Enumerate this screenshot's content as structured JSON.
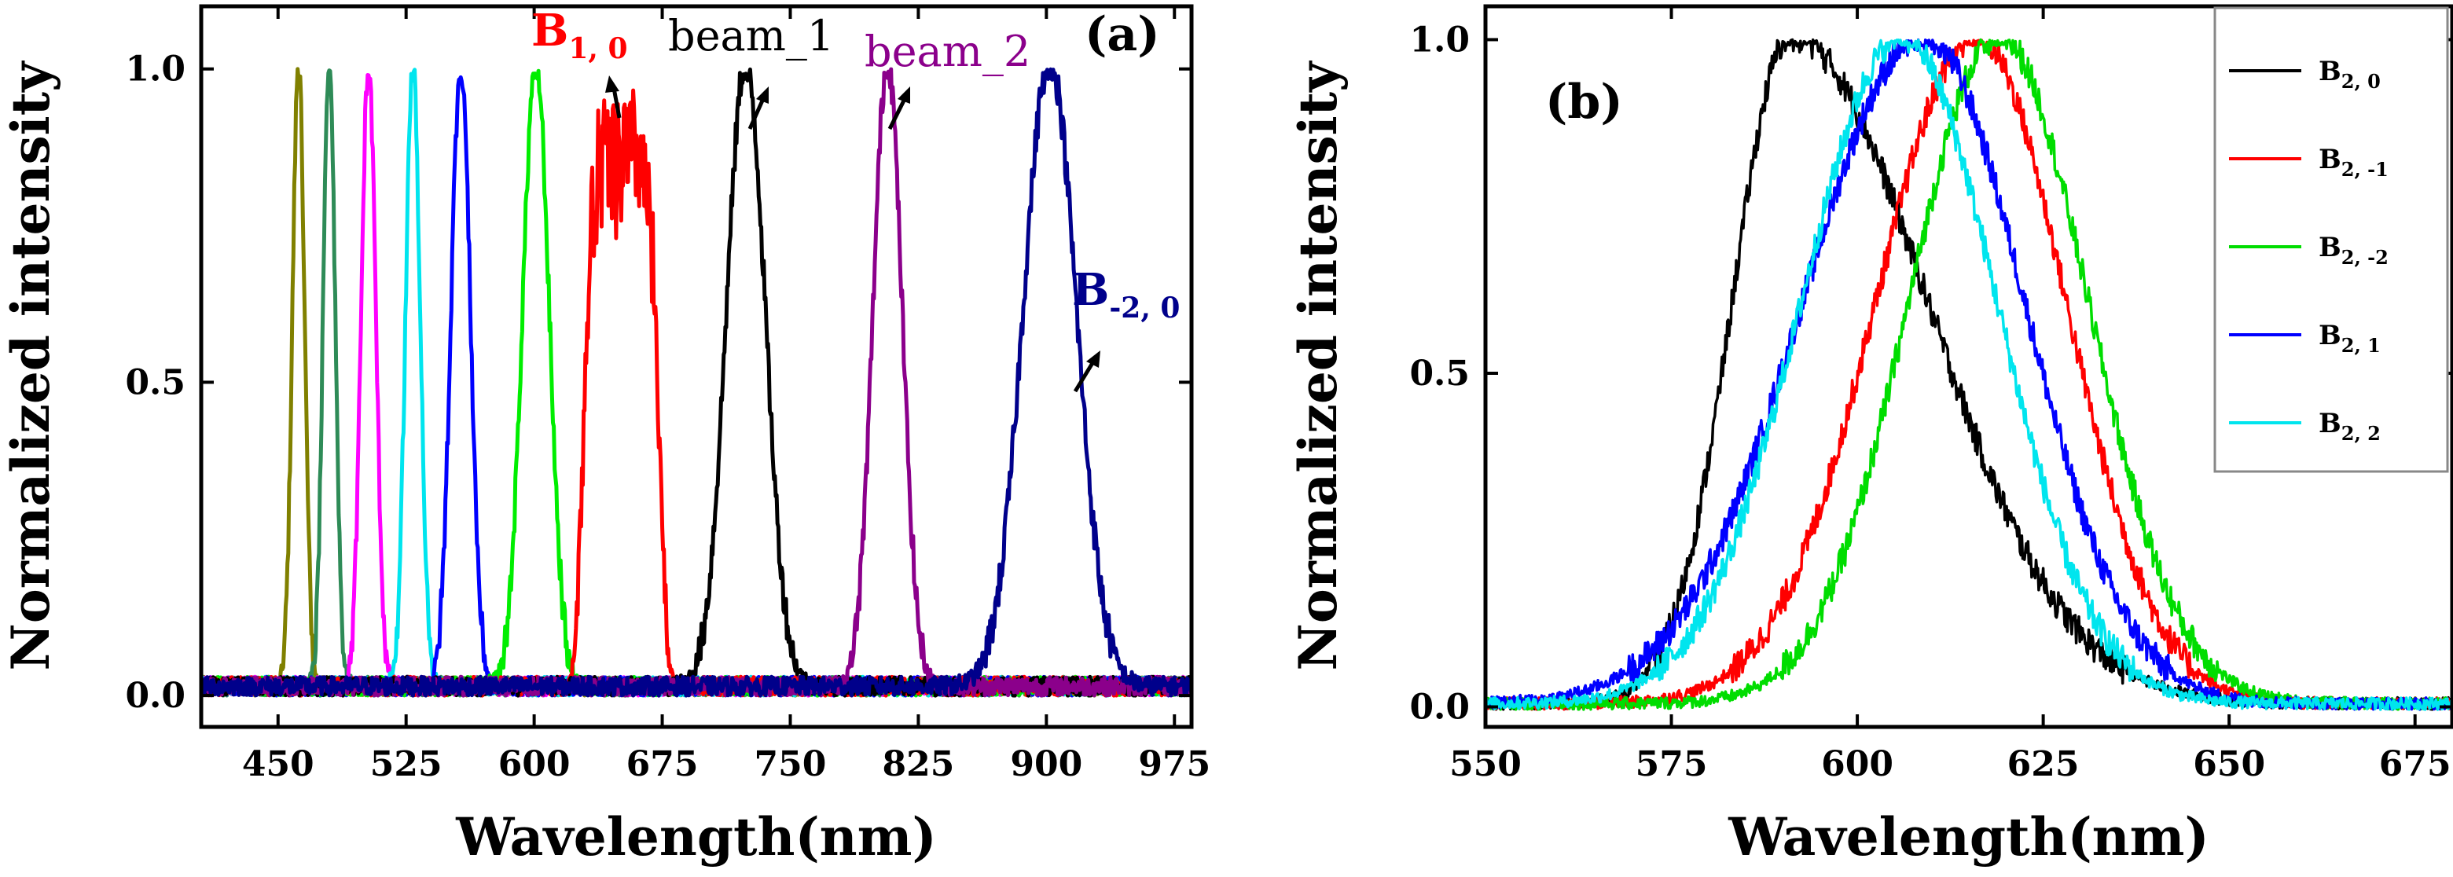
{
  "chart_data": [
    {
      "type": "line",
      "panel_label": "(a)",
      "xlabel": "Wavelength(nm)",
      "ylabel": "Normalized intensity",
      "xlim": [
        405,
        985
      ],
      "ylim": [
        -0.05,
        1.1
      ],
      "xticks": [
        450,
        525,
        600,
        675,
        750,
        825,
        900,
        975
      ],
      "xtick_labels": [
        "450",
        "525",
        "600",
        "675",
        "750",
        "825",
        "900",
        "975"
      ],
      "yticks": [
        0.0,
        0.5,
        1.0
      ],
      "ytick_labels": [
        "0.0",
        "0.5",
        "1.0"
      ],
      "grid": false,
      "series": [
        {
          "color": "#808000",
          "peak": 462,
          "width": 5
        },
        {
          "color": "#2e8b57",
          "peak": 480,
          "width": 5
        },
        {
          "color": "#ff00ff",
          "peak": 503,
          "width": 6
        },
        {
          "color": "#00e5ee",
          "peak": 529,
          "width": 6
        },
        {
          "color": "#0000ff",
          "peak": 557,
          "width": 8
        },
        {
          "color": "#00ee00",
          "peak": 601,
          "width": 11
        },
        {
          "name": "B",
          "sub": "1, 0",
          "color": "#ff0000",
          "peak": 651,
          "width": 22,
          "plateau": 0.84
        },
        {
          "name": "beam_1",
          "color": "#000000",
          "peak": 724,
          "width": 16
        },
        {
          "name": "beam_2",
          "color": "#8b008b",
          "peak": 807,
          "width": 12
        },
        {
          "name": "B",
          "sub": "-2, 0",
          "color": "#00008b",
          "peak": 902,
          "width": 22
        }
      ],
      "annotations": [
        {
          "text": "B",
          "sub": "1, 0",
          "color": "#ff0000"
        },
        {
          "text": "beam_1",
          "color": "#000000"
        },
        {
          "text": "beam_2",
          "color": "#8b008b"
        },
        {
          "text": "B",
          "sub": "-2, 0",
          "color": "#00008b"
        }
      ]
    },
    {
      "type": "line",
      "panel_label": "(b)",
      "xlabel": "Wavelength(nm)",
      "ylabel": "Normalized intensity",
      "xlim": [
        550,
        680
      ],
      "ylim": [
        -0.03,
        1.05
      ],
      "xticks": [
        550,
        575,
        600,
        625,
        650,
        675
      ],
      "xtick_labels": [
        "550",
        "575",
        "600",
        "625",
        "650",
        "675"
      ],
      "yticks": [
        0.0,
        0.5,
        1.0
      ],
      "ytick_labels": [
        "0.0",
        "0.5",
        "1.0"
      ],
      "grid": false,
      "legend": "top-right",
      "series": [
        {
          "name": "B",
          "sub": "2, 0",
          "color": "#000000",
          "peak": 591,
          "width_left": 11,
          "width_right": 26
        },
        {
          "name": "B",
          "sub": "2, -1",
          "color": "#ff0000",
          "peak": 616,
          "width_left": 19,
          "width_right": 17
        },
        {
          "name": "B",
          "sub": "2, -2",
          "color": "#00dd00",
          "peak": 619,
          "width_left": 17,
          "width_right": 17
        },
        {
          "name": "B",
          "sub": "2, 1",
          "color": "#0000ff",
          "peak": 609,
          "width_left": 23,
          "width_right": 19
        },
        {
          "name": "B",
          "sub": "2, 2",
          "color": "#00e5ee",
          "peak": 606,
          "width_left": 19,
          "width_right": 18
        }
      ]
    }
  ]
}
